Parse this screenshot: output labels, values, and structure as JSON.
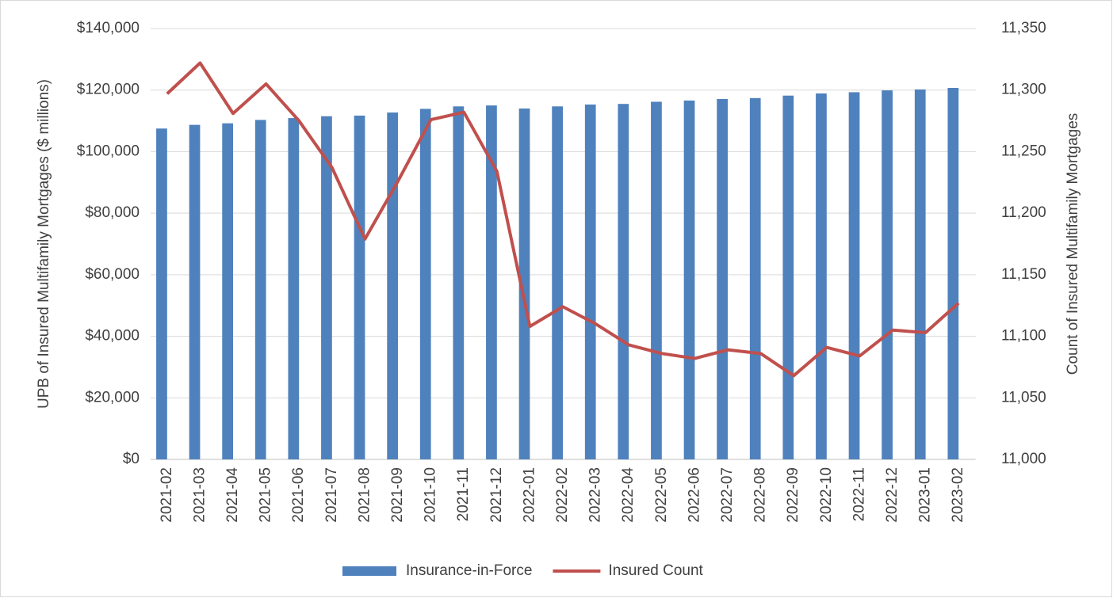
{
  "chart_data": {
    "type": "bar-line",
    "y_label": "UPB of Insured Multifamily Mortgages ($ millions)",
    "y2_label": "Count of Insured Multifamily Mortgages",
    "categories": [
      "2021-02",
      "2021-03",
      "2021-04",
      "2021-05",
      "2021-06",
      "2021-07",
      "2021-08",
      "2021-09",
      "2021-10",
      "2021-11",
      "2021-12",
      "2022-01",
      "2022-02",
      "2022-03",
      "2022-04",
      "2022-05",
      "2022-06",
      "2022-07",
      "2022-08",
      "2022-09",
      "2022-10",
      "2022-11",
      "2022-12",
      "2023-01",
      "2023-02"
    ],
    "series": [
      {
        "name": "Insurance-in-Force",
        "type": "bar",
        "color": "#4f81bd",
        "values": [
          107500,
          108700,
          109200,
          110300,
          110900,
          111500,
          111700,
          112700,
          113900,
          114700,
          115000,
          114000,
          114700,
          115300,
          115500,
          116200,
          116600,
          117100,
          117400,
          118200,
          118900,
          119300,
          119900,
          120200,
          120700
        ]
      },
      {
        "name": "Insured Count",
        "type": "line",
        "axis": "y2",
        "color": "#c0504d",
        "values": [
          11297,
          11322,
          11281,
          11305,
          11275,
          11237,
          11179,
          11226,
          11276,
          11282,
          11234,
          11108,
          11124,
          11110,
          11093,
          11086,
          11082,
          11089,
          11086,
          11068,
          11091,
          11084,
          11105,
          11103,
          11127
        ]
      }
    ],
    "ylim": [
      0,
      140000
    ],
    "yticks": [
      {
        "value": 0,
        "label": "$0"
      },
      {
        "value": 20000,
        "label": "$20,000"
      },
      {
        "value": 40000,
        "label": "$40,000"
      },
      {
        "value": 60000,
        "label": "$60,000"
      },
      {
        "value": 80000,
        "label": "$80,000"
      },
      {
        "value": 100000,
        "label": "$100,000"
      },
      {
        "value": 120000,
        "label": "$120,000"
      },
      {
        "value": 140000,
        "label": "$140,000"
      }
    ],
    "y2lim": [
      11000,
      11350
    ],
    "y2ticks": [
      {
        "value": 11000,
        "label": "11,000"
      },
      {
        "value": 11050,
        "label": "11,050"
      },
      {
        "value": 11100,
        "label": "11,100"
      },
      {
        "value": 11150,
        "label": "11,150"
      },
      {
        "value": 11200,
        "label": "11,200"
      },
      {
        "value": 11250,
        "label": "11,250"
      },
      {
        "value": 11300,
        "label": "11,300"
      },
      {
        "value": 11350,
        "label": "11,350"
      }
    ],
    "grid": true,
    "legend": "bottom"
  }
}
